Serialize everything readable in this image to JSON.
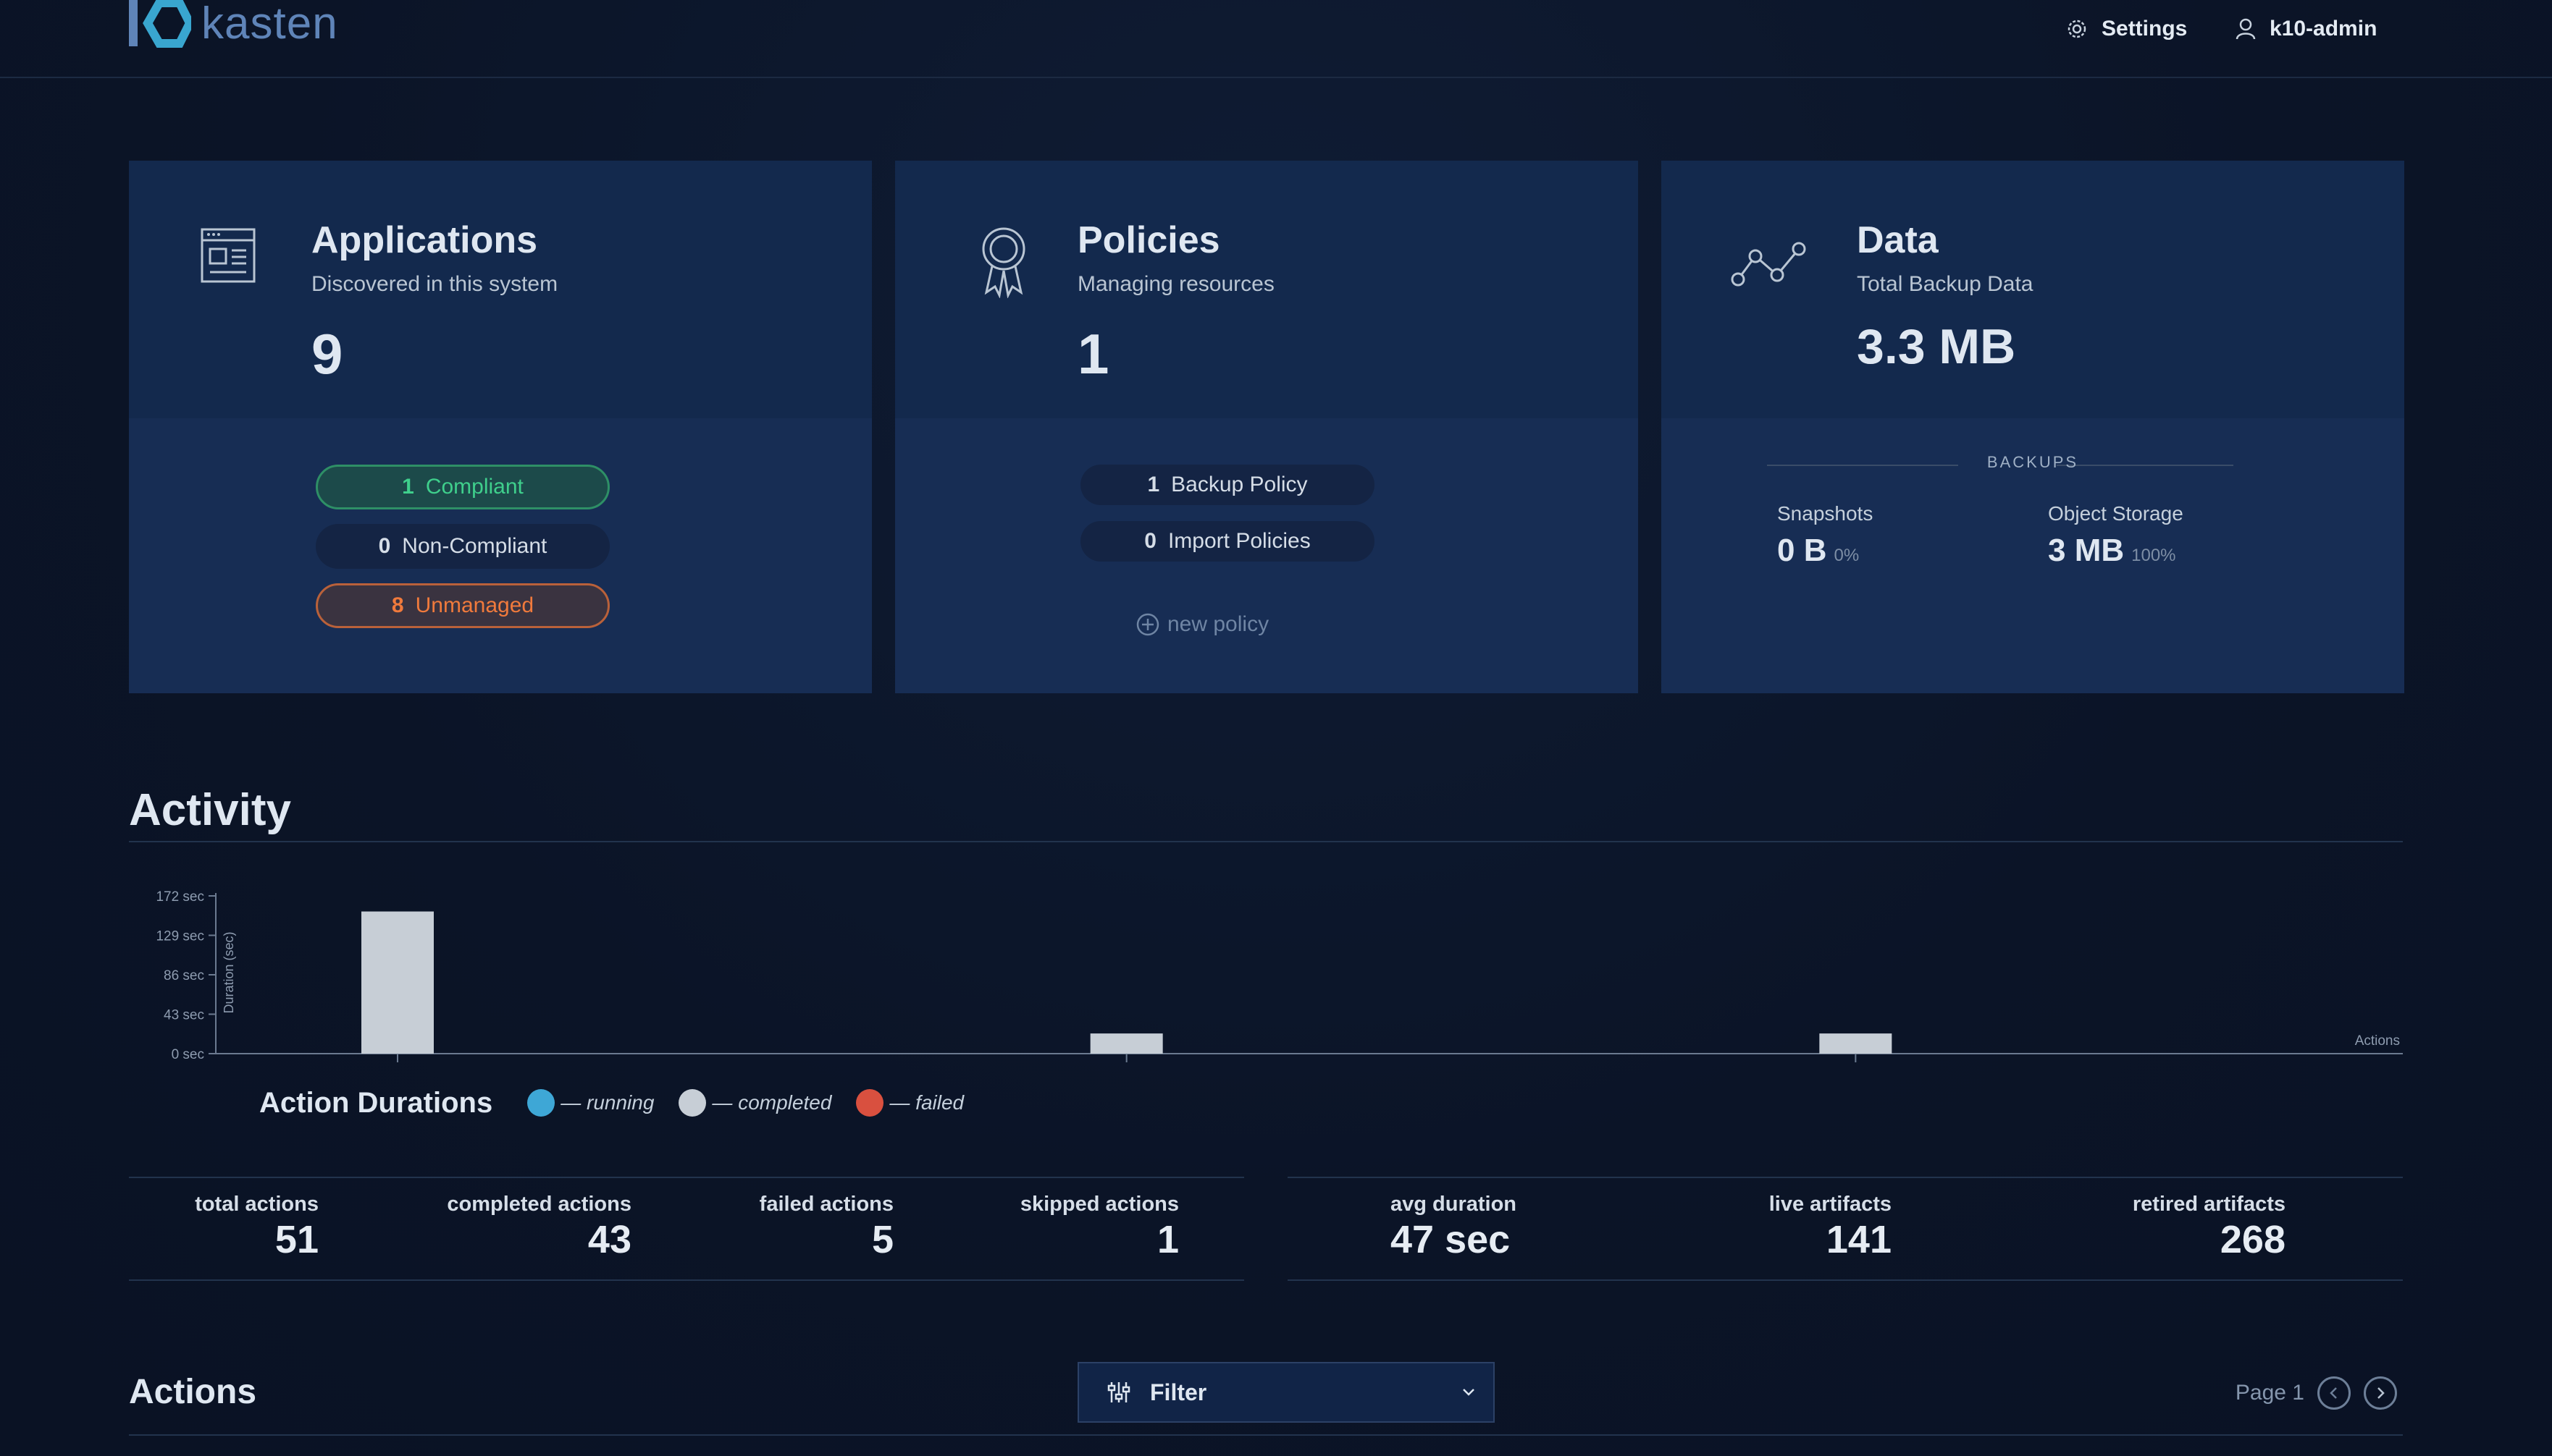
{
  "brand": {
    "name": "kasten"
  },
  "header": {
    "settings_label": "Settings",
    "user_label": "k10-admin"
  },
  "cards": {
    "applications": {
      "title": "Applications",
      "subtitle": "Discovered in this system",
      "count": "9",
      "pills": [
        {
          "count": "1",
          "label": "Compliant"
        },
        {
          "count": "0",
          "label": "Non-Compliant"
        },
        {
          "count": "8",
          "label": "Unmanaged"
        }
      ]
    },
    "policies": {
      "title": "Policies",
      "subtitle": "Managing resources",
      "count": "1",
      "pills": [
        {
          "count": "1",
          "label": "Backup Policy"
        },
        {
          "count": "0",
          "label": "Import Policies"
        }
      ],
      "new_policy_label": "new policy"
    },
    "data": {
      "title": "Data",
      "subtitle": "Total Backup Data",
      "total": "3.3 MB",
      "backups_label": "BACKUPS",
      "snapshots": {
        "label": "Snapshots",
        "value": "0 B",
        "pct": "0%"
      },
      "object_storage": {
        "label": "Object Storage",
        "value": "3 MB",
        "pct": "100%"
      }
    }
  },
  "activity": {
    "title": "Activity",
    "legend": {
      "title": "Action Durations",
      "items": [
        {
          "label": "— running",
          "color": "#3ea7d6"
        },
        {
          "label": "— completed",
          "color": "#c7ced6"
        },
        {
          "label": "— failed",
          "color": "#d9503f"
        }
      ]
    },
    "metrics_left": [
      {
        "label": "total actions",
        "value": "51"
      },
      {
        "label": "completed actions",
        "value": "43"
      },
      {
        "label": "failed actions",
        "value": "5"
      },
      {
        "label": "skipped actions",
        "value": "1"
      }
    ],
    "metrics_right": [
      {
        "label": "avg duration",
        "value": "47 sec"
      },
      {
        "label": "live artifacts",
        "value": "141"
      },
      {
        "label": "retired artifacts",
        "value": "268"
      }
    ]
  },
  "chart_data": {
    "type": "bar",
    "ylabel": "Duration (sec)",
    "xlabel": "Actions",
    "yticks": [
      "0 sec",
      "43 sec",
      "86 sec",
      "129 sec",
      "172 sec"
    ],
    "ylim": [
      0,
      172
    ],
    "x": [
      1,
      2,
      3
    ],
    "values": [
      155,
      22,
      22
    ],
    "series_color": "#c7ced6",
    "grid": false
  },
  "actions": {
    "title": "Actions",
    "filter_label": "Filter",
    "page_label": "Page 1"
  }
}
